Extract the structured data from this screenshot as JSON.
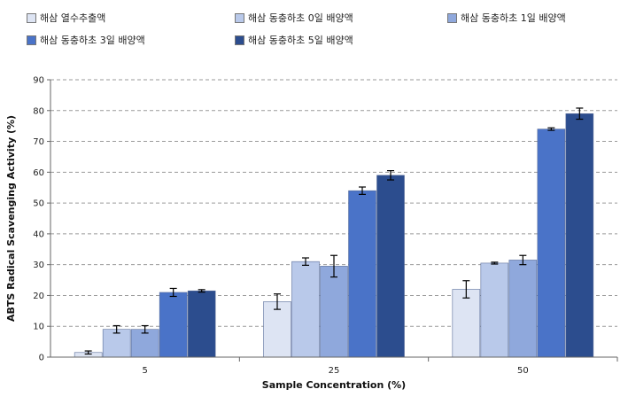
{
  "chart_data": {
    "type": "bar",
    "categories": [
      "5",
      "25",
      "50"
    ],
    "series": [
      {
        "name": "해삼 열수추출액",
        "values": [
          1.5,
          18,
          22
        ],
        "errors": [
          0.5,
          2.5,
          2.8
        ],
        "color": "#dde4f3"
      },
      {
        "name": "해삼 동충하초 0일 배양액",
        "values": [
          9,
          31,
          30.5
        ],
        "errors": [
          1.2,
          1.2,
          0.3
        ],
        "color": "#b9c9ea"
      },
      {
        "name": "해삼 동충하초 1일 배양액",
        "values": [
          9,
          29.5,
          31.5
        ],
        "errors": [
          1.2,
          3.5,
          1.5
        ],
        "color": "#8fa8dc"
      },
      {
        "name": "해삼 동충하초 3일 배양액",
        "values": [
          21,
          54,
          74
        ],
        "errors": [
          1.3,
          1.2,
          0.4
        ],
        "color": "#4a73c8"
      },
      {
        "name": "해삼 동충하초 5일 배양액",
        "values": [
          21.5,
          59,
          79
        ],
        "errors": [
          0.4,
          1.5,
          1.8
        ],
        "color": "#2c4d8e"
      }
    ],
    "xlabel": "Sample Concentration (%)",
    "ylabel": "ABTS   Radical   Scavenging Activity   (%)",
    "ylim": [
      0,
      90
    ],
    "yticks": [
      "0",
      "10",
      "20",
      "30",
      "40",
      "50",
      "60",
      "70",
      "80",
      "90"
    ],
    "grid": true,
    "legend_position": "top"
  }
}
